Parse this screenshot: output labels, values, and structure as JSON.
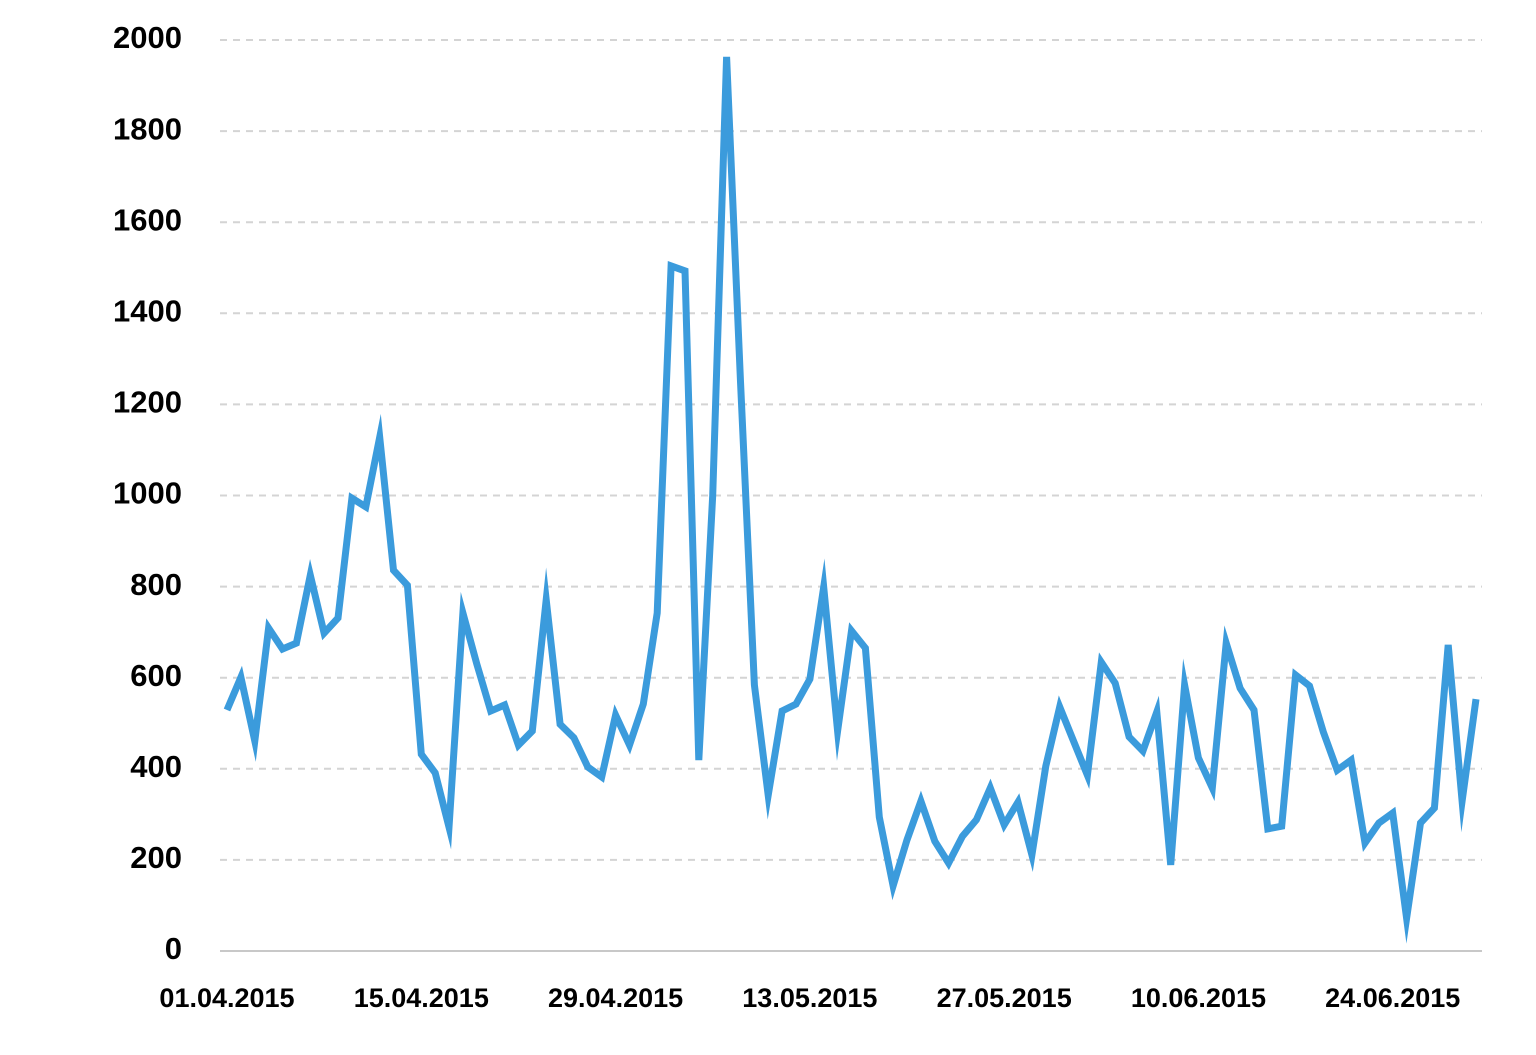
{
  "chart_data": {
    "type": "line",
    "categories": [
      "01.04.2015",
      null,
      null,
      null,
      null,
      null,
      null,
      null,
      null,
      null,
      null,
      null,
      null,
      null,
      "15.04.2015",
      null,
      null,
      null,
      null,
      null,
      null,
      null,
      null,
      null,
      null,
      null,
      null,
      null,
      "29.04.2015",
      null,
      null,
      null,
      null,
      null,
      null,
      null,
      null,
      null,
      null,
      null,
      null,
      null,
      "13.05.2015",
      null,
      null,
      null,
      null,
      null,
      null,
      null,
      null,
      null,
      null,
      null,
      null,
      null,
      "27.05.2015",
      null,
      null,
      null,
      null,
      null,
      null,
      null,
      null,
      null,
      null,
      null,
      null,
      null,
      "10.06.2015",
      null,
      null,
      null,
      null,
      null,
      null,
      null,
      null,
      null,
      null,
      null,
      null,
      null,
      "24.06.2015",
      null,
      null,
      null,
      null,
      null,
      null
    ],
    "values": [
      529,
      601,
      461,
      709,
      663,
      676,
      825,
      698,
      731,
      994,
      975,
      1128,
      836,
      803,
      432,
      391,
      272,
      742,
      630,
      527,
      540,
      452,
      483,
      771,
      498,
      468,
      404,
      382,
      518,
      452,
      542,
      742,
      1504,
      1493,
      419,
      1000,
      1963,
      1250,
      584,
      342,
      527,
      542,
      597,
      799,
      483,
      703,
      665,
      294,
      143,
      244,
      329,
      241,
      193,
      252,
      288,
      358,
      277,
      327,
      211,
      406,
      536,
      461,
      386,
      634,
      588,
      470,
      439,
      525,
      189,
      584,
      424,
      358,
      676,
      577,
      529,
      268,
      274,
      606,
      582,
      481,
      397,
      419,
      237,
      281,
      303,
      72,
      281,
      314,
      672,
      329,
      553
    ],
    "color": "#3b9bdc",
    "ylim": [
      0,
      2000
    ],
    "yticks": [
      0,
      200,
      400,
      600,
      800,
      1000,
      1200,
      1400,
      1600,
      1800,
      2000
    ],
    "grid": true
  }
}
